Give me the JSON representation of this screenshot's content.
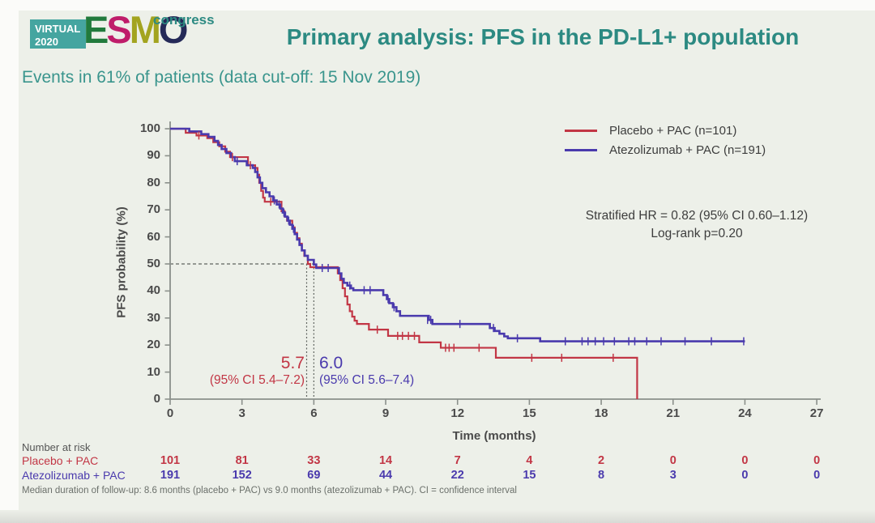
{
  "header": {
    "logo": {
      "badge_line1": "VIRTUAL",
      "badge_line2": "2020",
      "badge_color": "#45a5a0",
      "esmo_letters": [
        {
          "ch": "E",
          "color": "#217a3c"
        },
        {
          "ch": "S",
          "color": "#bf1d6a"
        },
        {
          "ch": "M",
          "color": "#a3a41f"
        },
        {
          "ch": "O",
          "color": "#252a58"
        }
      ],
      "congress": "congress"
    },
    "title": "Primary analysis: PFS in the PD-L1+ population"
  },
  "subtitle": "Events in 61% of patients (data cut-off: 15 Nov 2019)",
  "colors": {
    "title_teal": "#2c8a82",
    "subtitle_teal": "#3a958d",
    "axis_gray": "#8b908b",
    "dash_gray": "#5f645f",
    "tick_text": "#4a4a4a",
    "body_text": "#3d3d3d",
    "footnote_gray": "#6b706b"
  },
  "chart_data": {
    "type": "line",
    "subtype": "kaplan-meier-step",
    "xlabel": "Time (months)",
    "ylabel": "PFS probability (%)",
    "xlim": [
      0,
      27
    ],
    "ylim": [
      0,
      100
    ],
    "x_ticks": [
      0,
      3,
      6,
      9,
      12,
      15,
      18,
      21,
      24,
      27
    ],
    "y_ticks": [
      0,
      10,
      20,
      30,
      40,
      50,
      60,
      70,
      80,
      90,
      100
    ],
    "grid": false,
    "legend_position": "upper right",
    "reference_line_pct": 50,
    "series": [
      {
        "name": "Placebo + PAC (n=101)",
        "color": "#c23645",
        "median": 5.7,
        "median_label": "5.7",
        "ci_label": "(95% CI 5.4–7.2)",
        "steps": [
          [
            0,
            100
          ],
          [
            0.65,
            98.5
          ],
          [
            1.1,
            97.5
          ],
          [
            1.55,
            96.5
          ],
          [
            1.8,
            95
          ],
          [
            2.05,
            93.5
          ],
          [
            2.3,
            91.5
          ],
          [
            2.5,
            89.5
          ],
          [
            3.25,
            86.5
          ],
          [
            3.55,
            85.5
          ],
          [
            3.65,
            83
          ],
          [
            3.72,
            80
          ],
          [
            3.8,
            77
          ],
          [
            3.88,
            74.5
          ],
          [
            3.95,
            73
          ],
          [
            4.65,
            69.5
          ],
          [
            4.78,
            67.5
          ],
          [
            4.88,
            66
          ],
          [
            5.1,
            63.5
          ],
          [
            5.2,
            61.5
          ],
          [
            5.3,
            59.5
          ],
          [
            5.4,
            57.5
          ],
          [
            5.5,
            55
          ],
          [
            5.6,
            53
          ],
          [
            5.75,
            50
          ],
          [
            5.85,
            48.8
          ],
          [
            7.0,
            46.5
          ],
          [
            7.1,
            44
          ],
          [
            7.2,
            41
          ],
          [
            7.3,
            38
          ],
          [
            7.4,
            35
          ],
          [
            7.5,
            32.5
          ],
          [
            7.6,
            30.5
          ],
          [
            7.7,
            29
          ],
          [
            7.8,
            27.8
          ],
          [
            8.3,
            25.7
          ],
          [
            9.1,
            23.4
          ],
          [
            10.4,
            21
          ],
          [
            11.3,
            19
          ],
          [
            13.6,
            15.3
          ],
          [
            19.5,
            0
          ]
        ],
        "censors": [
          [
            1.2,
            97.5
          ],
          [
            2.6,
            89.5
          ],
          [
            3.35,
            86.5
          ],
          [
            4.2,
            73
          ],
          [
            8.65,
            25.7
          ],
          [
            9.5,
            23.4
          ],
          [
            9.7,
            23.4
          ],
          [
            9.95,
            23.4
          ],
          [
            10.2,
            23.4
          ],
          [
            11.5,
            19
          ],
          [
            11.65,
            19
          ],
          [
            11.85,
            19
          ],
          [
            12.9,
            19
          ],
          [
            15.1,
            15.3
          ],
          [
            16.35,
            15.3
          ],
          [
            18.5,
            15.3
          ]
        ]
      },
      {
        "name": "Atezolizumab + PAC (n=191)",
        "color": "#4a3aad",
        "median": 6.0,
        "median_label": "6.0",
        "ci_label": "(95% CI 5.6–7.4)",
        "steps": [
          [
            0,
            100
          ],
          [
            0.8,
            99
          ],
          [
            1.3,
            98
          ],
          [
            1.6,
            97
          ],
          [
            1.85,
            95.5
          ],
          [
            2.0,
            94
          ],
          [
            2.15,
            92.5
          ],
          [
            2.35,
            91
          ],
          [
            2.55,
            89.5
          ],
          [
            2.7,
            88
          ],
          [
            3.2,
            86.5
          ],
          [
            3.45,
            85.5
          ],
          [
            3.55,
            84
          ],
          [
            3.65,
            82
          ],
          [
            3.75,
            80
          ],
          [
            3.85,
            78
          ],
          [
            4.0,
            76.5
          ],
          [
            4.15,
            75
          ],
          [
            4.3,
            73.5
          ],
          [
            4.45,
            72
          ],
          [
            4.6,
            70.5
          ],
          [
            4.7,
            69
          ],
          [
            4.8,
            67.5
          ],
          [
            4.9,
            66
          ],
          [
            5.0,
            64.5
          ],
          [
            5.1,
            63
          ],
          [
            5.2,
            61
          ],
          [
            5.3,
            59
          ],
          [
            5.4,
            57
          ],
          [
            5.5,
            55
          ],
          [
            5.62,
            53
          ],
          [
            5.75,
            51.5
          ],
          [
            6.0,
            49.8
          ],
          [
            6.1,
            48.5
          ],
          [
            7.05,
            46.5
          ],
          [
            7.15,
            44.5
          ],
          [
            7.25,
            43
          ],
          [
            7.4,
            42
          ],
          [
            7.55,
            41
          ],
          [
            7.65,
            40.3
          ],
          [
            8.9,
            38.5
          ],
          [
            9.05,
            37
          ],
          [
            9.15,
            35.5
          ],
          [
            9.3,
            34
          ],
          [
            9.45,
            32.5
          ],
          [
            9.6,
            30.8
          ],
          [
            10.8,
            29.3
          ],
          [
            10.95,
            27.8
          ],
          [
            13.35,
            26.3
          ],
          [
            13.55,
            25.2
          ],
          [
            13.75,
            24.2
          ],
          [
            13.95,
            23.2
          ],
          [
            14.1,
            22.5
          ],
          [
            15.45,
            21.4
          ],
          [
            24,
            21.4
          ]
        ],
        "censors": [
          [
            2.8,
            88
          ],
          [
            4.35,
            73.5
          ],
          [
            4.55,
            72
          ],
          [
            4.75,
            69
          ],
          [
            4.95,
            66
          ],
          [
            5.15,
            63
          ],
          [
            6.35,
            48.5
          ],
          [
            6.6,
            48.5
          ],
          [
            7.5,
            42
          ],
          [
            8.1,
            40.3
          ],
          [
            8.35,
            40.3
          ],
          [
            9.1,
            37
          ],
          [
            9.35,
            34
          ],
          [
            10.75,
            29.3
          ],
          [
            10.88,
            29.3
          ],
          [
            12.1,
            27.8
          ],
          [
            13.5,
            26.3
          ],
          [
            14.5,
            22.5
          ],
          [
            16.5,
            21.4
          ],
          [
            17.2,
            21.4
          ],
          [
            17.45,
            21.4
          ],
          [
            17.75,
            21.4
          ],
          [
            18.1,
            21.4
          ],
          [
            18.55,
            21.4
          ],
          [
            19.15,
            21.4
          ],
          [
            19.4,
            21.4
          ],
          [
            19.9,
            21.4
          ],
          [
            20.5,
            21.4
          ],
          [
            21.5,
            21.4
          ],
          [
            22.6,
            21.4
          ],
          [
            23.95,
            21.4
          ]
        ]
      }
    ]
  },
  "stats": {
    "line1": "Stratified HR = 0.82 (95% CI 0.60–1.12)",
    "line2": "Log-rank p=0.20"
  },
  "risk_table": {
    "title": "Number at risk",
    "rows": [
      {
        "label": "Placebo + PAC",
        "counts": [
          101,
          81,
          33,
          14,
          7,
          4,
          2,
          0,
          0,
          0
        ]
      },
      {
        "label": "Atezolizumab + PAC",
        "counts": [
          191,
          152,
          69,
          44,
          22,
          15,
          8,
          3,
          0,
          0
        ]
      }
    ]
  },
  "footnote": "Median duration of follow-up: 8.6 months (placebo + PAC) vs 9.0 months (atezolizumab + PAC). CI = confidence interval"
}
